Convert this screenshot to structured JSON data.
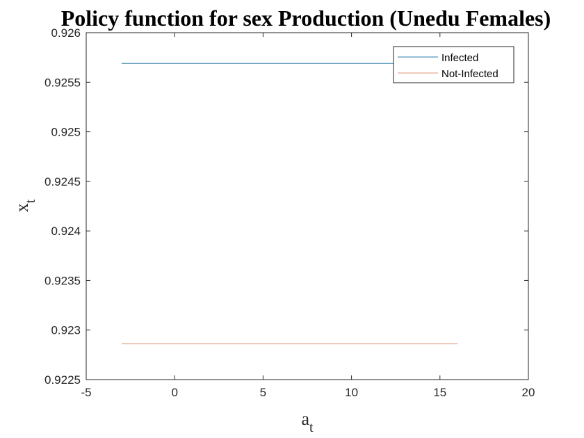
{
  "chart_data": {
    "type": "line",
    "title": "Policy function for sex Production (Unedu Females)",
    "xlabel": {
      "base": "a",
      "sub": "t"
    },
    "ylabel": {
      "base": "x",
      "sub": "t"
    },
    "xlim": [
      -5,
      20
    ],
    "ylim": [
      0.9225,
      0.926
    ],
    "xticks": [
      -5,
      0,
      5,
      10,
      15,
      20
    ],
    "xtick_labels": [
      "-5",
      "0",
      "5",
      "10",
      "15",
      "20"
    ],
    "yticks": [
      0.9225,
      0.923,
      0.9235,
      0.924,
      0.9245,
      0.925,
      0.9255,
      0.926
    ],
    "ytick_labels": [
      "0.9225",
      "0.923",
      "0.9235",
      "0.924",
      "0.9245",
      "0.925",
      "0.9255",
      "0.926"
    ],
    "grid": false,
    "legend_position": "top-right",
    "series": [
      {
        "name": "Infected",
        "color": "#2a7ea8",
        "x": [
          -3,
          16
        ],
        "y": [
          0.92569,
          0.92569
        ]
      },
      {
        "name": "Not-Infected",
        "color": "#e0957a",
        "x": [
          -3,
          16
        ],
        "y": [
          0.92286,
          0.92286
        ]
      }
    ]
  }
}
